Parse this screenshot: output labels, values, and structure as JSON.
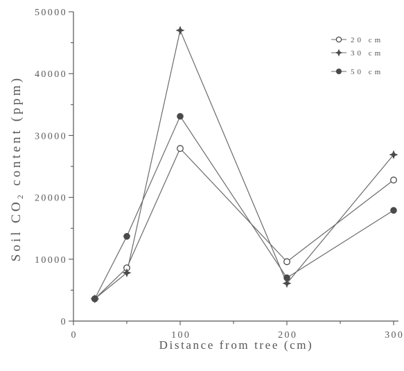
{
  "chart_data": {
    "type": "line",
    "xlabel": "Distance from tree (cm)",
    "ylabel": "Soil CO₂ content (ppm)",
    "xlim": [
      0,
      300
    ],
    "ylim": [
      0,
      50000
    ],
    "x_ticks": [
      0,
      100,
      200,
      300
    ],
    "y_ticks": [
      0,
      10000,
      20000,
      30000,
      40000,
      50000
    ],
    "grid": false,
    "legend_position": "top-right",
    "x": [
      20,
      50,
      100,
      200,
      300
    ],
    "series": [
      {
        "name": "20 cm",
        "marker": "open-circle",
        "values": [
          3600,
          8600,
          27900,
          9600,
          22800
        ]
      },
      {
        "name": "30 cm",
        "marker": "filled-star",
        "values": [
          3600,
          7800,
          47000,
          6100,
          26900
        ]
      },
      {
        "name": "50 cm",
        "marker": "filled-circle",
        "values": [
          3600,
          13700,
          33100,
          7000,
          17900
        ]
      }
    ]
  },
  "colors": {
    "background": "#ffffff",
    "axis": "#555555",
    "text": "#555555",
    "line": "#6a6a6a",
    "marker": "#4a4a4a"
  }
}
